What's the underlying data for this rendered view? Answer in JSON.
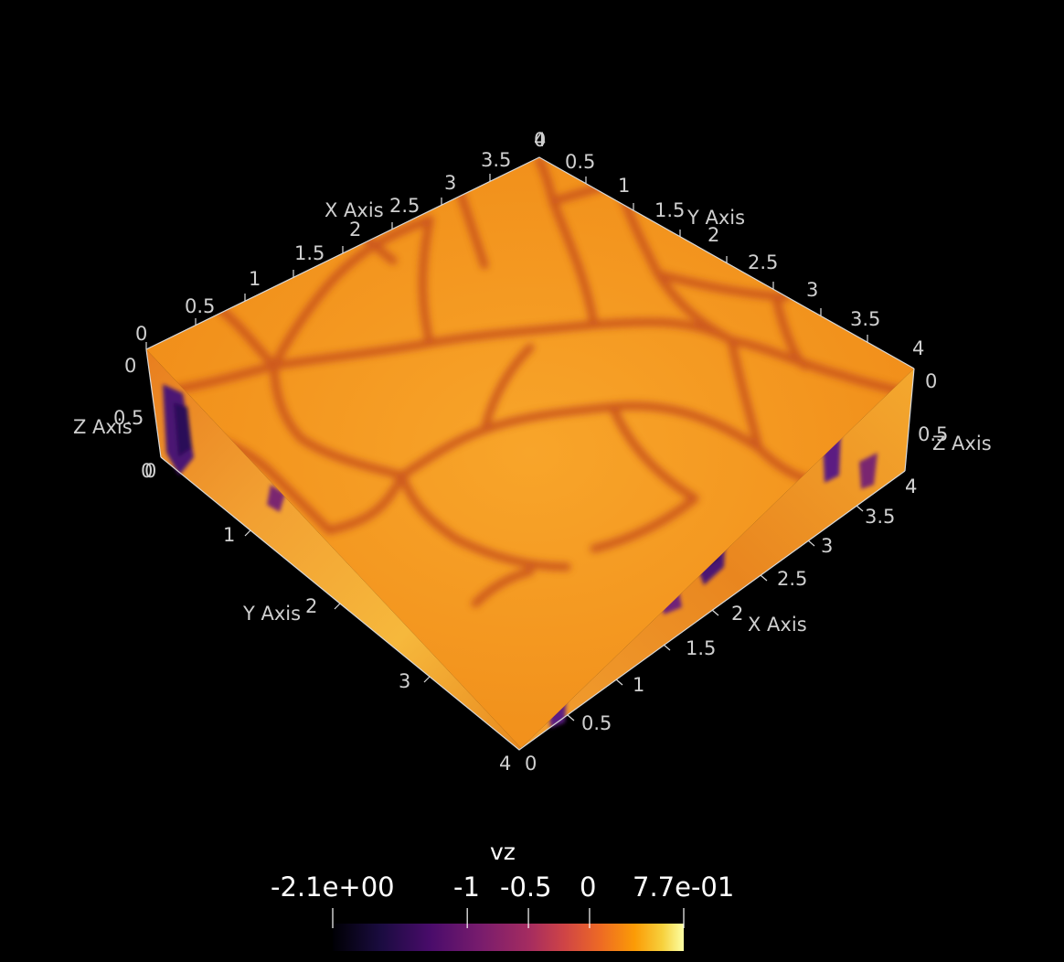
{
  "scene": {
    "scalar_name": "vz",
    "colormap": "inferno",
    "background": "#000000",
    "top_face_base_color": "#f59417",
    "cell_boundary_color": "#c8501f",
    "side_face_colors": [
      "#f7a62b",
      "#f6c141",
      "#5c1a82",
      "#2a0b58"
    ]
  },
  "axes": {
    "top_back_left": {
      "title": "X Axis",
      "ticks": [
        "0",
        "0.5",
        "1",
        "1.5",
        "2",
        "2.5",
        "3",
        "3.5",
        "4"
      ]
    },
    "top_back_right": {
      "title": "Y Axis",
      "ticks": [
        "0",
        "0.5",
        "1",
        "1.5",
        "2",
        "2.5",
        "3",
        "3.5",
        "4"
      ]
    },
    "left_vertical": {
      "title": "Z Axis",
      "ticks": [
        "0",
        "0.5",
        "0"
      ]
    },
    "right_vertical": {
      "title": "Z Axis",
      "ticks": [
        "0",
        "0.5",
        "4"
      ]
    },
    "bottom_front_left": {
      "title": "Y Axis",
      "ticks": [
        "0",
        "1",
        "2",
        "3",
        "4"
      ]
    },
    "bottom_front_right": {
      "title": "X Axis",
      "ticks": [
        "0",
        "0.5",
        "1",
        "1.5",
        "2",
        "2.5",
        "3",
        "3.5",
        "4"
      ]
    }
  },
  "colorbar": {
    "title": "vz",
    "min_label": "-2.1e+00",
    "max_label": "7.7e-01",
    "tick_labels": [
      "-1",
      "-0.5",
      "0"
    ],
    "range": [
      -2.1,
      0.77
    ],
    "ticks": [
      -1,
      -0.5,
      0
    ]
  }
}
